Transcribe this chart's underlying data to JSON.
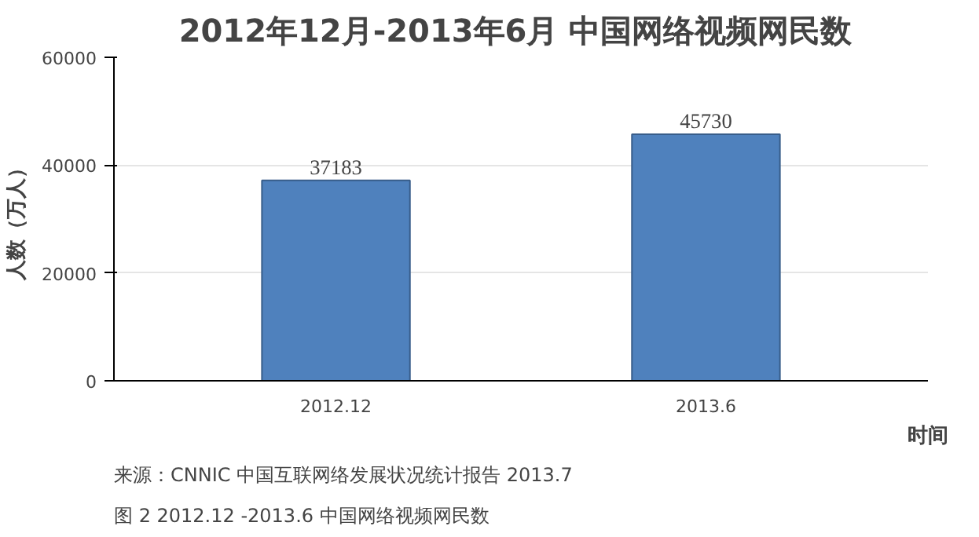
{
  "chart_data": {
    "type": "bar",
    "title": "2012年12月-2013年6月  中国网络视频网民数",
    "ylabel": "人数（万人）",
    "xlabel": "时间",
    "categories": [
      "2012.12",
      "2013.6"
    ],
    "values": [
      37183,
      45730
    ],
    "color": "#4f81bd",
    "ylim": [
      0,
      60000
    ],
    "yticks": [
      0,
      20000,
      40000,
      60000
    ],
    "grid": "y",
    "data_labels": true,
    "annotations": [
      "来源：CNNIC 中国互联网络发展状况统计报告   2013.7",
      "图 2   2012.12 -2013.6 中国网络视频网民数"
    ]
  }
}
